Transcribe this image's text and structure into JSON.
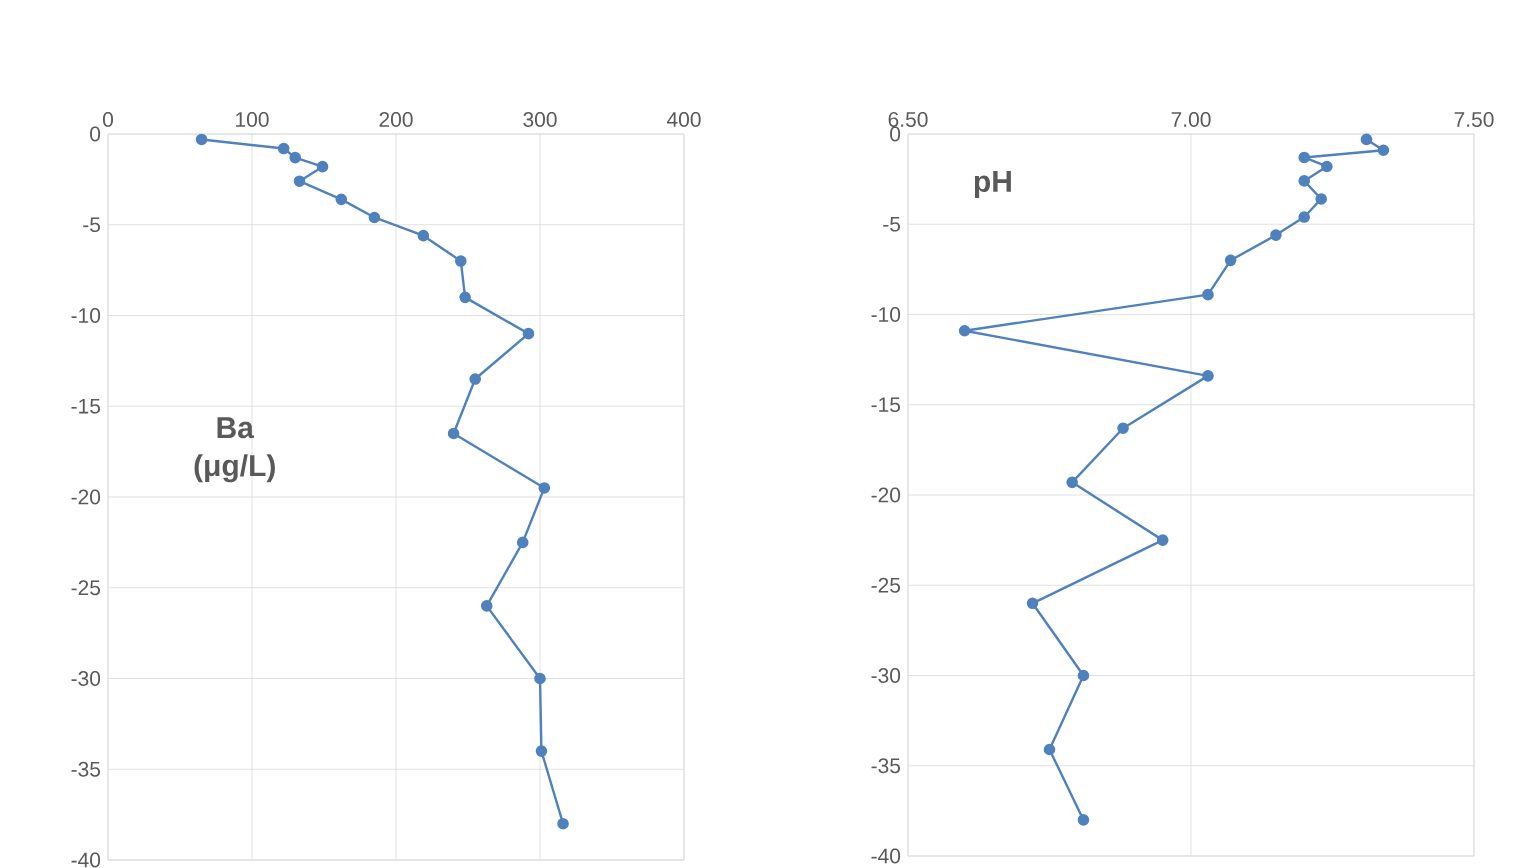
{
  "chart_data": [
    {
      "type": "line",
      "annotations": [
        "Ba (μg/L)"
      ],
      "color": "#4f81bd",
      "marker": "circle",
      "grid": true,
      "x": [
        65,
        122,
        130,
        149,
        133,
        162,
        185,
        219,
        245,
        248,
        292,
        255,
        240,
        303,
        288,
        263,
        300,
        301,
        316
      ],
      "values": [
        -0.3,
        -0.8,
        -1.3,
        -1.8,
        -2.6,
        -3.6,
        -4.6,
        -5.6,
        -7,
        -9,
        -11,
        -13.5,
        -16.5,
        -19.5,
        -22.5,
        -26,
        -30,
        -34,
        -38
      ],
      "xlim": [
        0,
        400
      ],
      "ylim": [
        -40,
        0
      ],
      "xticks": [
        0,
        100,
        200,
        300,
        400
      ],
      "yticks": [
        0,
        -5,
        -10,
        -15,
        -20,
        -25,
        -30,
        -35,
        -40
      ]
    },
    {
      "type": "line",
      "annotations": [
        "pH"
      ],
      "color": "#4f81bd",
      "marker": "circle",
      "grid": true,
      "x": [
        7.31,
        7.34,
        7.2,
        7.24,
        7.2,
        7.23,
        7.2,
        7.15,
        7.07,
        7.03,
        6.6,
        7.03,
        6.88,
        6.79,
        6.95,
        6.72,
        6.81,
        6.75,
        6.81
      ],
      "values": [
        -0.3,
        -0.9,
        -1.3,
        -1.8,
        -2.6,
        -3.6,
        -4.6,
        -5.6,
        -7,
        -8.9,
        -10.9,
        -13.4,
        -16.3,
        -19.3,
        -22.5,
        -26,
        -30,
        -34.1,
        -38
      ],
      "xlim": [
        6.5,
        7.5
      ],
      "ylim": [
        -40,
        0
      ],
      "xticks": [
        {
          "value": 6.5,
          "label": "6.50"
        },
        {
          "value": 7.0,
          "label": "7.00"
        },
        {
          "value": 7.5,
          "label": "7.50"
        }
      ],
      "yticks": [
        0,
        -5,
        -10,
        -15,
        -20,
        -25,
        -30,
        -35,
        -40
      ]
    }
  ]
}
